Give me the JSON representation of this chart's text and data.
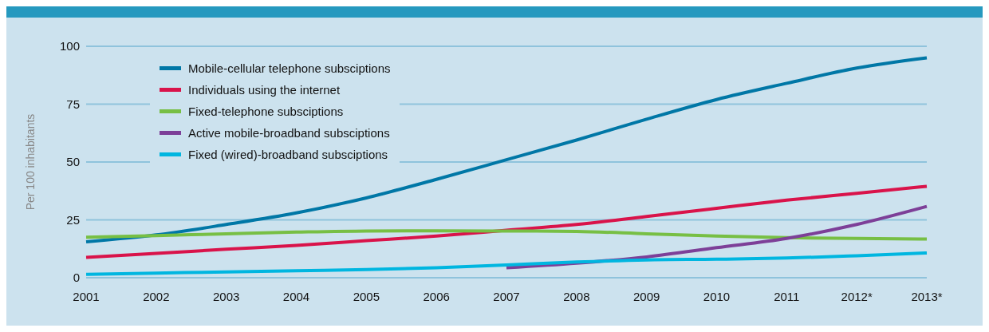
{
  "chart_data": {
    "type": "line",
    "ylabel": "Per 100 inhabitants",
    "categories": [
      "2001",
      "2002",
      "2003",
      "2004",
      "2005",
      "2006",
      "2007",
      "2008",
      "2009",
      "2010",
      "2011",
      "2012*",
      "2013*"
    ],
    "series": [
      {
        "name": "Mobile-cellular telephone subsciptions",
        "color": "#0077a6",
        "values": [
          15.5,
          18.5,
          23,
          28,
          34.5,
          42.5,
          51,
          59.5,
          68.5,
          77,
          84,
          90.6,
          95
        ]
      },
      {
        "name": "Individuals using the internet",
        "color": "#d9134a",
        "values": [
          8.8,
          10.5,
          12.3,
          14,
          16,
          18,
          20.5,
          23,
          26.5,
          30,
          33.5,
          36.5,
          39.5
        ]
      },
      {
        "name": "Fixed-telephone subsciptions",
        "color": "#77bf44",
        "values": [
          17.5,
          18.2,
          19,
          19.7,
          20.2,
          20.3,
          20.2,
          20,
          19,
          18,
          17.3,
          17,
          16.7
        ]
      },
      {
        "name": "Active mobile-broadband subsciptions",
        "color": "#7d3f98",
        "values": [
          null,
          null,
          null,
          null,
          null,
          null,
          4.3,
          6.3,
          9,
          13,
          17,
          23,
          30.8
        ]
      },
      {
        "name": "Fixed (wired)-broadband subsciptions",
        "color": "#00b6e0",
        "values": [
          1.5,
          2,
          2.5,
          3,
          3.5,
          4.3,
          5.5,
          6.8,
          7.7,
          8,
          8.5,
          9.5,
          10.7
        ]
      }
    ],
    "ylim": [
      0,
      100
    ],
    "yticks": [
      0,
      25,
      50,
      75,
      100
    ],
    "grid": "y",
    "legend": "top left",
    "marker": "none",
    "line_style": "solid"
  }
}
